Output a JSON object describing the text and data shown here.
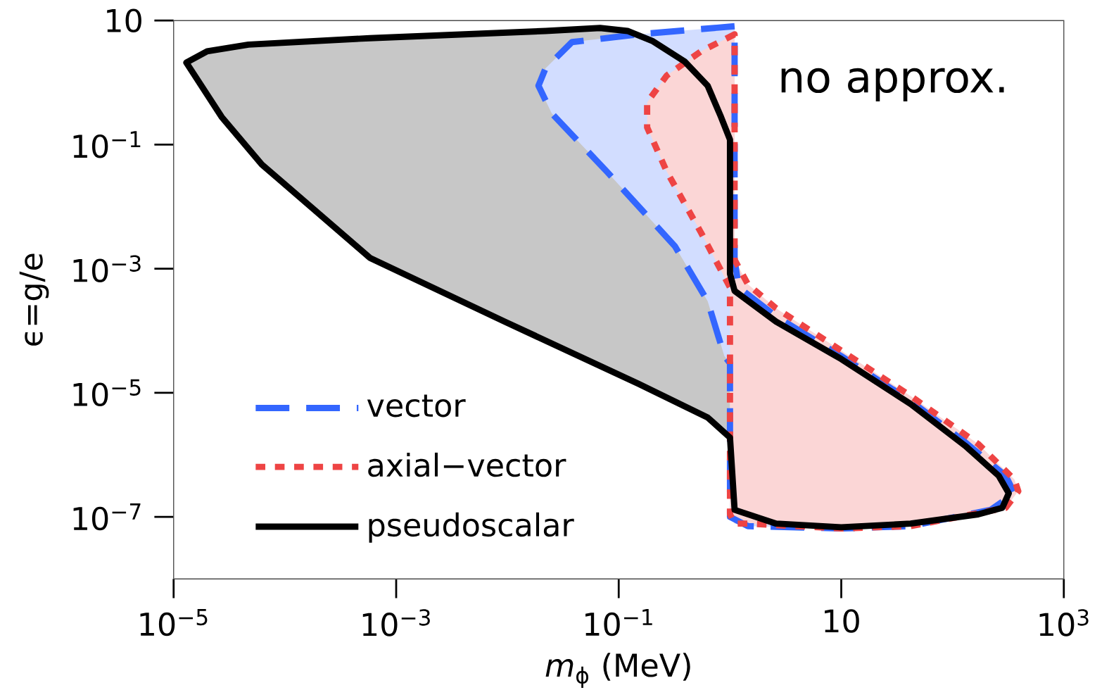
{
  "chart_data": {
    "type": "area",
    "xlabel": "*m*$_{ϕ}$ (MeV)",
    "ylabel": "ϵ=g/e",
    "log": "xy",
    "xlim": [
      1e-05,
      1000
    ],
    "ylim": [
      1e-08,
      10
    ],
    "xticks": [
      {
        "value": 1e-05,
        "label": "10$^{−5}$"
      },
      {
        "value": 0.001,
        "label": "10$^{−3}$"
      },
      {
        "value": 0.1,
        "label": "10$^{−1}$"
      },
      10,
      {
        "value": 1000,
        "label": "10$^{3}$"
      }
    ],
    "yticks": [
      {
        "value": 1e-07,
        "label": "10$^{−7}$"
      },
      {
        "value": 1e-05,
        "label": "10$^{−5}$"
      },
      {
        "value": 0.001,
        "label": "10$^{−3}$"
      },
      {
        "value": 0.1,
        "label": "10$^{−1}$"
      },
      10
    ],
    "legend": "bottom left",
    "annotations": [
      "no approx."
    ],
    "series": [
      {
        "name": "vector",
        "color": "#3366ff",
        "line_style": "dashed",
        "x": [
          1.1,
          0.15,
          0.038,
          0.022,
          0.019,
          0.025,
          0.078,
          0.32,
          0.63,
          0.89,
          1.0,
          1.0,
          1.45,
          10,
          42,
          220,
          360,
          300,
          130,
          42,
          10,
          2.6,
          1.2,
          1.1
        ],
        "values": [
          8.1,
          6.0,
          4.5,
          1.7,
          0.89,
          0.32,
          0.037,
          0.0023,
          0.0003,
          3.9e-05,
          3e-05,
          1e-07,
          7.1e-08,
          6.5e-08,
          7.1e-08,
          1.3e-07,
          2.4e-07,
          4.6e-07,
          1.6e-06,
          7.4e-06,
          3.9e-05,
          0.00017,
          0.0005,
          0.0014
        ]
      },
      {
        "name": "axial−vector",
        "color": "#ee4444",
        "line_style": "dotted",
        "x": [
          1.1,
          0.55,
          0.27,
          0.18,
          0.18,
          0.27,
          0.55,
          1.0,
          1.0,
          1.1,
          1.45,
          10,
          42,
          300,
          390,
          360,
          170,
          42,
          10,
          2.6,
          1.45,
          1.1
        ],
        "values": [
          6.0,
          3.2,
          1.3,
          0.48,
          0.19,
          0.037,
          0.0038,
          0.0005,
          1.1e-07,
          7.8e-08,
          7.8e-08,
          6.5e-08,
          7.1e-08,
          1.4e-07,
          2.6e-07,
          4e-07,
          1.5e-06,
          8.9e-06,
          4.8e-05,
          0.00023,
          0.00056,
          0.0014
        ]
      },
      {
        "name": "pseudoscalar",
        "color": "#000000",
        "line_style": "solid",
        "x": [
          1.3e-05,
          2e-05,
          4.7e-05,
          0.00058,
          0.022,
          0.068,
          0.12,
          0.2,
          0.39,
          0.63,
          0.83,
          1.0,
          1.0,
          1.1,
          2.6,
          10,
          42,
          130,
          260,
          320,
          280,
          170,
          42,
          10,
          2.6,
          1.1,
          1.0,
          0.63,
          0.15,
          0.0095,
          0.00058,
          6.2e-05,
          2.7e-05
        ],
        "values": [
          2.1,
          3.2,
          4.1,
          5.2,
          6.8,
          7.6,
          6.8,
          4.7,
          2.2,
          0.89,
          0.28,
          0.12,
          0.00083,
          0.00044,
          0.00014,
          3.5e-05,
          6.6e-06,
          1.4e-06,
          4.6e-07,
          2.4e-07,
          1.4e-07,
          1.1e-07,
          7.8e-08,
          6.8e-08,
          7.8e-08,
          1.3e-07,
          1.9e-06,
          4e-06,
          1.4e-05,
          0.00014,
          0.0015,
          0.048,
          0.28
        ]
      }
    ]
  }
}
